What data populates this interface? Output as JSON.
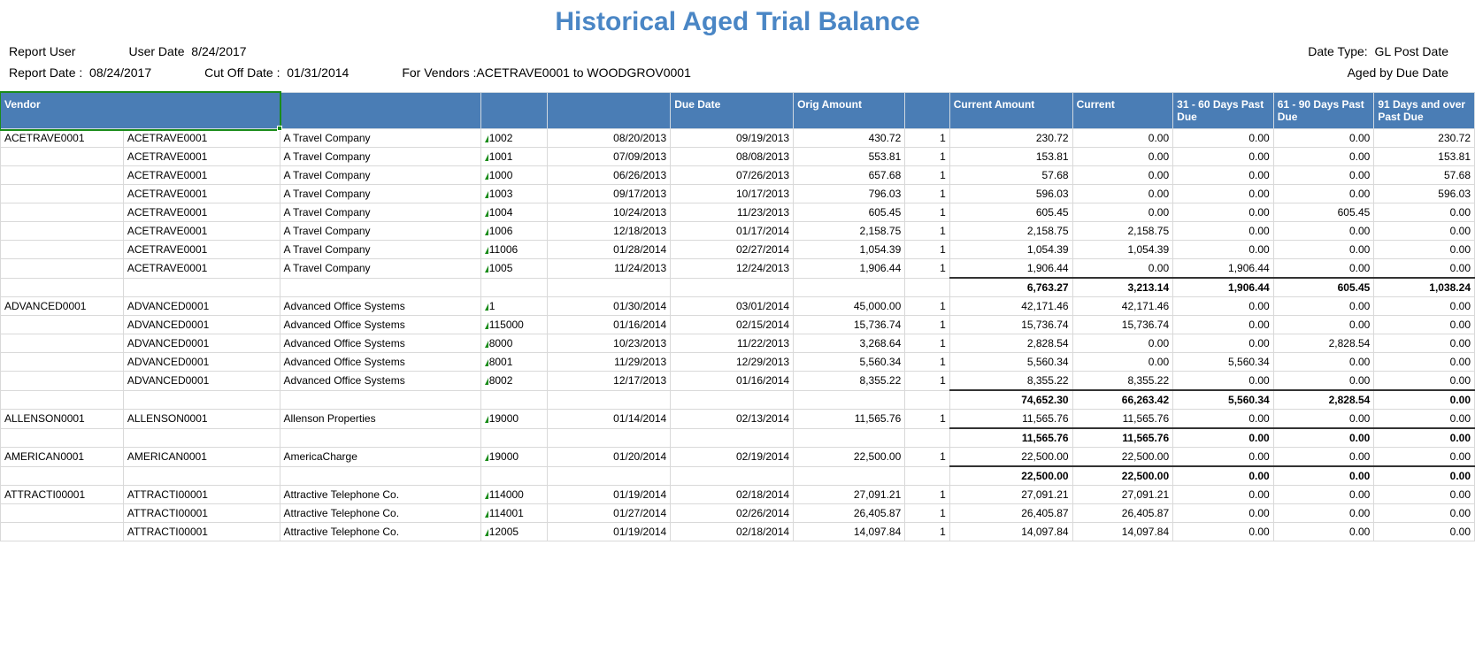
{
  "title": "Historical Aged Trial Balance",
  "meta_row1": {
    "report_user_label": "Report User",
    "user_date_label": "User Date",
    "user_date": "8/24/2017",
    "date_type_label": "Date Type:",
    "date_type": "GL Post Date"
  },
  "meta_row2": {
    "report_date_label": "Report Date :",
    "report_date": "08/24/2017",
    "cutoff_label": "Cut Off Date :",
    "cutoff_date": "01/31/2014",
    "for_vendors_label": "For Vendors :",
    "for_vendors": "ACETRAVE0001 to WOODGROV0001",
    "aged_by": "Aged by Due Date"
  },
  "headers": {
    "vendor": "Vendor",
    "due_date": "Due Date",
    "orig_amount": "Orig Amount",
    "current_amount": "Current Amount",
    "current": "Current",
    "b3160": "31 - 60 Days Past Due",
    "b6190": "61 - 90 Days Past Due",
    "b91p": "91 Days and over Past Due"
  },
  "groups": [
    {
      "vendor_id": "ACETRAVE0001",
      "rows": [
        {
          "vendor": "ACETRAVE0001",
          "company": "A Travel Company",
          "doc": "1002",
          "date1": "08/20/2013",
          "due": "09/19/2013",
          "orig": "430.72",
          "one": "1",
          "curr": "230.72",
          "c": "0.00",
          "b1": "0.00",
          "b2": "0.00",
          "b3": "230.72"
        },
        {
          "vendor": "ACETRAVE0001",
          "company": "A Travel Company",
          "doc": "1001",
          "date1": "07/09/2013",
          "due": "08/08/2013",
          "orig": "553.81",
          "one": "1",
          "curr": "153.81",
          "c": "0.00",
          "b1": "0.00",
          "b2": "0.00",
          "b3": "153.81"
        },
        {
          "vendor": "ACETRAVE0001",
          "company": "A Travel Company",
          "doc": "1000",
          "date1": "06/26/2013",
          "due": "07/26/2013",
          "orig": "657.68",
          "one": "1",
          "curr": "57.68",
          "c": "0.00",
          "b1": "0.00",
          "b2": "0.00",
          "b3": "57.68"
        },
        {
          "vendor": "ACETRAVE0001",
          "company": "A Travel Company",
          "doc": "1003",
          "date1": "09/17/2013",
          "due": "10/17/2013",
          "orig": "796.03",
          "one": "1",
          "curr": "596.03",
          "c": "0.00",
          "b1": "0.00",
          "b2": "0.00",
          "b3": "596.03"
        },
        {
          "vendor": "ACETRAVE0001",
          "company": "A Travel Company",
          "doc": "1004",
          "date1": "10/24/2013",
          "due": "11/23/2013",
          "orig": "605.45",
          "one": "1",
          "curr": "605.45",
          "c": "0.00",
          "b1": "0.00",
          "b2": "605.45",
          "b3": "0.00"
        },
        {
          "vendor": "ACETRAVE0001",
          "company": "A Travel Company",
          "doc": "1006",
          "date1": "12/18/2013",
          "due": "01/17/2014",
          "orig": "2,158.75",
          "one": "1",
          "curr": "2,158.75",
          "c": "2,158.75",
          "b1": "0.00",
          "b2": "0.00",
          "b3": "0.00"
        },
        {
          "vendor": "ACETRAVE0001",
          "company": "A Travel Company",
          "doc": "11006",
          "date1": "01/28/2014",
          "due": "02/27/2014",
          "orig": "1,054.39",
          "one": "1",
          "curr": "1,054.39",
          "c": "1,054.39",
          "b1": "0.00",
          "b2": "0.00",
          "b3": "0.00"
        },
        {
          "vendor": "ACETRAVE0001",
          "company": "A Travel Company",
          "doc": "1005",
          "date1": "11/24/2013",
          "due": "12/24/2013",
          "orig": "1,906.44",
          "one": "1",
          "curr": "1,906.44",
          "c": "0.00",
          "b1": "1,906.44",
          "b2": "0.00",
          "b3": "0.00"
        }
      ],
      "subtotal": {
        "curr": "6,763.27",
        "c": "3,213.14",
        "b1": "1,906.44",
        "b2": "605.45",
        "b3": "1,038.24"
      }
    },
    {
      "vendor_id": "ADVANCED0001",
      "rows": [
        {
          "vendor": "ADVANCED0001",
          "company": "Advanced Office Systems",
          "doc": "1",
          "date1": "01/30/2014",
          "due": "03/01/2014",
          "orig": "45,000.00",
          "one": "1",
          "curr": "42,171.46",
          "c": "42,171.46",
          "b1": "0.00",
          "b2": "0.00",
          "b3": "0.00"
        },
        {
          "vendor": "ADVANCED0001",
          "company": "Advanced Office Systems",
          "doc": "115000",
          "date1": "01/16/2014",
          "due": "02/15/2014",
          "orig": "15,736.74",
          "one": "1",
          "curr": "15,736.74",
          "c": "15,736.74",
          "b1": "0.00",
          "b2": "0.00",
          "b3": "0.00"
        },
        {
          "vendor": "ADVANCED0001",
          "company": "Advanced Office Systems",
          "doc": "8000",
          "date1": "10/23/2013",
          "due": "11/22/2013",
          "orig": "3,268.64",
          "one": "1",
          "curr": "2,828.54",
          "c": "0.00",
          "b1": "0.00",
          "b2": "2,828.54",
          "b3": "0.00"
        },
        {
          "vendor": "ADVANCED0001",
          "company": "Advanced Office Systems",
          "doc": "8001",
          "date1": "11/29/2013",
          "due": "12/29/2013",
          "orig": "5,560.34",
          "one": "1",
          "curr": "5,560.34",
          "c": "0.00",
          "b1": "5,560.34",
          "b2": "0.00",
          "b3": "0.00"
        },
        {
          "vendor": "ADVANCED0001",
          "company": "Advanced Office Systems",
          "doc": "8002",
          "date1": "12/17/2013",
          "due": "01/16/2014",
          "orig": "8,355.22",
          "one": "1",
          "curr": "8,355.22",
          "c": "8,355.22",
          "b1": "0.00",
          "b2": "0.00",
          "b3": "0.00"
        }
      ],
      "subtotal": {
        "curr": "74,652.30",
        "c": "66,263.42",
        "b1": "5,560.34",
        "b2": "2,828.54",
        "b3": "0.00"
      }
    },
    {
      "vendor_id": "ALLENSON0001",
      "rows": [
        {
          "vendor": "ALLENSON0001",
          "company": "Allenson Properties",
          "doc": "19000",
          "date1": "01/14/2014",
          "due": "02/13/2014",
          "orig": "11,565.76",
          "one": "1",
          "curr": "11,565.76",
          "c": "11,565.76",
          "b1": "0.00",
          "b2": "0.00",
          "b3": "0.00"
        }
      ],
      "subtotal": {
        "curr": "11,565.76",
        "c": "11,565.76",
        "b1": "0.00",
        "b2": "0.00",
        "b3": "0.00"
      }
    },
    {
      "vendor_id": "AMERICAN0001",
      "rows": [
        {
          "vendor": "AMERICAN0001",
          "company": "AmericaCharge",
          "doc": "19000",
          "date1": "01/20/2014",
          "due": "02/19/2014",
          "orig": "22,500.00",
          "one": "1",
          "curr": "22,500.00",
          "c": "22,500.00",
          "b1": "0.00",
          "b2": "0.00",
          "b3": "0.00"
        }
      ],
      "subtotal": {
        "curr": "22,500.00",
        "c": "22,500.00",
        "b1": "0.00",
        "b2": "0.00",
        "b3": "0.00"
      }
    },
    {
      "vendor_id": "ATTRACTI00001",
      "rows": [
        {
          "vendor": "ATTRACTI00001",
          "company": "Attractive Telephone Co.",
          "doc": "114000",
          "date1": "01/19/2014",
          "due": "02/18/2014",
          "orig": "27,091.21",
          "one": "1",
          "curr": "27,091.21",
          "c": "27,091.21",
          "b1": "0.00",
          "b2": "0.00",
          "b3": "0.00"
        },
        {
          "vendor": "ATTRACTI00001",
          "company": "Attractive Telephone Co.",
          "doc": "114001",
          "date1": "01/27/2014",
          "due": "02/26/2014",
          "orig": "26,405.87",
          "one": "1",
          "curr": "26,405.87",
          "c": "26,405.87",
          "b1": "0.00",
          "b2": "0.00",
          "b3": "0.00"
        },
        {
          "vendor": "ATTRACTI00001",
          "company": "Attractive Telephone Co.",
          "doc": "12005",
          "date1": "01/19/2014",
          "due": "02/18/2014",
          "orig": "14,097.84",
          "one": "1",
          "curr": "14,097.84",
          "c": "14,097.84",
          "b1": "0.00",
          "b2": "0.00",
          "b3": "0.00"
        }
      ]
    }
  ],
  "colors": {
    "title": "#4a86c5",
    "header_bg": "#4a7db5",
    "triangle": "#1a8c1a"
  }
}
